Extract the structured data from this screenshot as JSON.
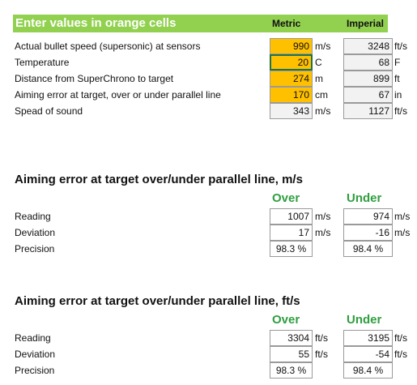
{
  "header": {
    "title": "Enter values in orange cells",
    "metric_label": "Metric",
    "imperial_label": "Imperial"
  },
  "inputs": [
    {
      "label": "Actual bullet speed (supersonic) at sensors",
      "metric_value": "990",
      "metric_unit": "m/s",
      "imperial_value": "3248",
      "imperial_unit": "ft/s"
    },
    {
      "label": "Temperature",
      "metric_value": "20",
      "metric_unit": "C",
      "imperial_value": "68",
      "imperial_unit": "F"
    },
    {
      "label": "Distance from SuperChrono to target",
      "metric_value": "274",
      "metric_unit": "m",
      "imperial_value": "899",
      "imperial_unit": "ft"
    },
    {
      "label": "Aiming error at target, over or under parallel line",
      "metric_value": "170",
      "metric_unit": "cm",
      "imperial_value": "67",
      "imperial_unit": "in"
    },
    {
      "label": "Spead of sound",
      "metric_value": "343",
      "metric_unit": "m/s",
      "imperial_value": "1127",
      "imperial_unit": "ft/s"
    }
  ],
  "section_ms": {
    "title": "Aiming error at target over/under parallel line, m/s",
    "over_label": "Over",
    "under_label": "Under",
    "rows": [
      {
        "label": "Reading",
        "over": "1007",
        "over_unit": "m/s",
        "under": "974",
        "under_unit": "m/s"
      },
      {
        "label": "Deviation",
        "over": "17",
        "over_unit": "m/s",
        "under": "-16",
        "under_unit": "m/s"
      },
      {
        "label": "Precision",
        "over": "98.3 %",
        "over_unit": "",
        "under": "98.4 %",
        "under_unit": ""
      }
    ]
  },
  "section_fts": {
    "title": "Aiming error at target over/under parallel line, ft/s",
    "over_label": "Over",
    "under_label": "Under",
    "rows": [
      {
        "label": "Reading",
        "over": "3304",
        "over_unit": "ft/s",
        "under": "3195",
        "under_unit": "ft/s"
      },
      {
        "label": "Deviation",
        "over": "55",
        "over_unit": "ft/s",
        "under": "-54",
        "under_unit": "ft/s"
      },
      {
        "label": "Precision",
        "over": "98.3 %",
        "over_unit": "",
        "under": "98.4 %",
        "under_unit": ""
      }
    ]
  },
  "colors": {
    "header_green": "#92d050",
    "input_orange": "#ffc000",
    "result_green": "#2f9e3f",
    "selection": "#217346"
  }
}
